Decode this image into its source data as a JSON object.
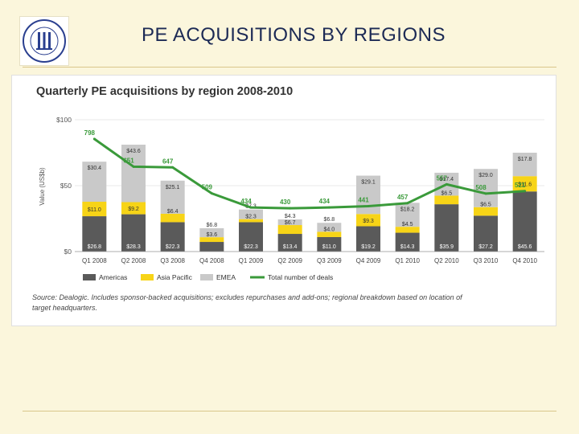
{
  "slide": {
    "title": "PE ACQUISITIONS BY REGIONS",
    "logo_text": "OKAN UNIVERSITESI 1999"
  },
  "colors": {
    "americas": "#5a5a5a",
    "asia_pacific": "#f7d417",
    "emea": "#c9c9c9",
    "deals_line": "#3a9a3a",
    "title_text": "#1c2a55"
  },
  "chart_data": {
    "type": "bar",
    "stacked": true,
    "title": "Quarterly PE acquisitions by region 2008-2010",
    "ylabel": "Value (US$b)",
    "ylim": [
      0,
      100
    ],
    "y_ticks": [
      "$0",
      "$50",
      "$100"
    ],
    "categories": [
      "Q1 2008",
      "Q2 2008",
      "Q3 2008",
      "Q4 2008",
      "Q1 2009",
      "Q2 2009",
      "Q3 2009",
      "Q4 2009",
      "Q1 2010",
      "Q2 2010",
      "Q3 2010",
      "Q4 2010"
    ],
    "series": [
      {
        "name": "Americas",
        "color": "#5a5a5a",
        "values": [
          26.8,
          28.3,
          22.3,
          7.3,
          22.3,
          13.4,
          11.0,
          19.2,
          14.3,
          35.9,
          27.2,
          45.6
        ],
        "labels": [
          "$26.8",
          "$28.3",
          "$22.3",
          "$7.3",
          "$22.3",
          "$13.4",
          "$11.0",
          "$19.2",
          "$14.3",
          "$35.9",
          "$27.2",
          "$45.6"
        ]
      },
      {
        "name": "Asia Pacific",
        "color": "#f7d417",
        "values": [
          11.0,
          9.2,
          6.4,
          3.6,
          2.3,
          6.7,
          4.0,
          9.3,
          4.5,
          6.5,
          6.5,
          11.6
        ],
        "labels": [
          "$11.0",
          "$9.2",
          "$6.4",
          "$3.6",
          "$2.3",
          "$6.7",
          "$4.0",
          "$9.3",
          "$4.5",
          "$6.5",
          "$6.5",
          "$11.6"
        ]
      },
      {
        "name": "EMEA",
        "color": "#c9c9c9",
        "values": [
          30.4,
          43.6,
          25.1,
          6.8,
          7.3,
          4.3,
          6.8,
          29.1,
          18.2,
          17.4,
          29.0,
          17.8
        ],
        "labels": [
          "$30.4",
          "$43.6",
          "$25.1",
          "$6.8",
          "$7.3",
          "$4.3",
          "$6.8",
          "$29.1",
          "$18.2",
          "$17.4",
          "$29.0",
          "$17.8"
        ]
      }
    ],
    "line_series": {
      "name": "Total number of deals",
      "color": "#3a9a3a",
      "values": [
        798,
        651,
        647,
        509,
        434,
        430,
        434,
        441,
        457,
        557,
        508,
        521
      ],
      "labels": [
        "798",
        "651",
        "647",
        "509",
        "434",
        "430",
        "434",
        "441",
        "457",
        "557",
        "508",
        "521"
      ]
    },
    "legend": [
      "Americas",
      "Asia Pacific",
      "EMEA",
      "Total number of deals"
    ],
    "legend_position": "bottom",
    "source": "Source: Dealogic. Includes sponsor-backed acquisitions; excludes repurchases and add-ons; regional breakdown based on location of target headquarters."
  }
}
